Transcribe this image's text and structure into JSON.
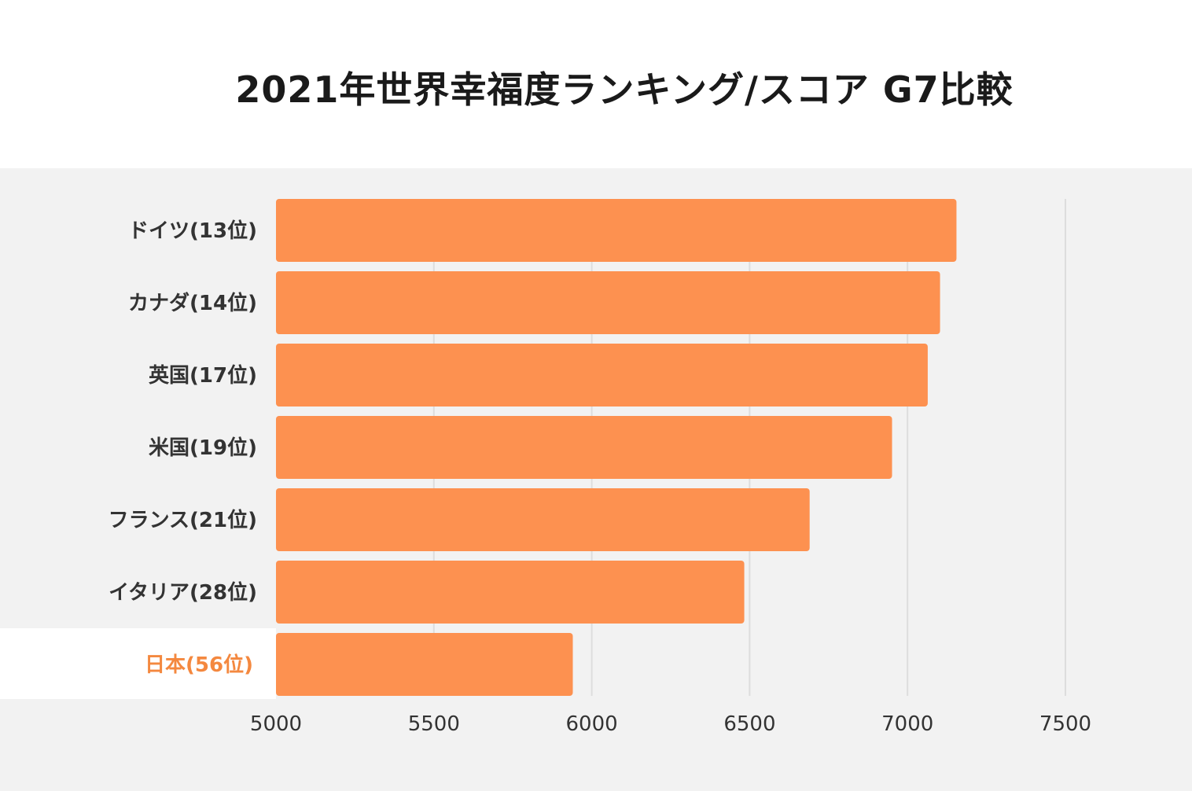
{
  "chart_data": {
    "type": "bar",
    "orientation": "horizontal",
    "title": "2021年世界幸福度ランキング/スコア G7比較",
    "categories": [
      "ドイツ(13位)",
      "カナダ(14位)",
      "英国(17位)",
      "米国(19位)",
      "フランス(21位)",
      "イタリア(28位)",
      "日本(56位)"
    ],
    "values": [
      7155,
      7103,
      7064,
      6951,
      6690,
      6483,
      5940
    ],
    "highlight_category": "日本(56位)",
    "xlim": [
      5000,
      7500
    ],
    "xticks": [
      5000,
      5500,
      6000,
      6500,
      7000,
      7500
    ],
    "xlabel": "",
    "ylabel": "",
    "grid": "vertical",
    "legend": "none",
    "colors": {
      "bar": "#fd9150",
      "highlight_text": "#f4883f",
      "plot_background": "#f2f2f2",
      "gridline": "#dddddd"
    }
  }
}
